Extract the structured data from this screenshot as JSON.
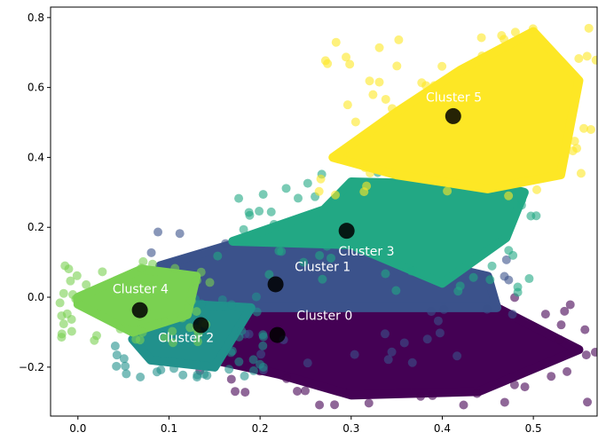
{
  "chart_data": {
    "type": "scatter",
    "title": "",
    "xlabel": "",
    "ylabel": "",
    "xlim": [
      -0.03,
      0.57
    ],
    "ylim": [
      -0.34,
      0.83
    ],
    "xticks": [
      0.0,
      0.1,
      0.2,
      0.3,
      0.4,
      0.5
    ],
    "xtick_labels": [
      "0.0",
      "0.1",
      "0.2",
      "0.3",
      "0.4",
      "0.5"
    ],
    "yticks": [
      -0.2,
      0.0,
      0.2,
      0.4,
      0.6,
      0.8
    ],
    "ytick_labels": [
      "−0.2",
      "0.0",
      "0.2",
      "0.4",
      "0.6",
      "0.8"
    ],
    "grid": false,
    "clusters": [
      {
        "name": "Cluster 0",
        "color": "#440154",
        "centroid": [
          0.219,
          -0.108
        ],
        "label_pos": [
          0.24,
          -0.065
        ],
        "region": [
          [
            0.22,
            -0.22
          ],
          [
            0.15,
            -0.18
          ],
          [
            0.19,
            -0.03
          ],
          [
            0.46,
            -0.03
          ],
          [
            0.55,
            -0.15
          ],
          [
            0.44,
            -0.27
          ],
          [
            0.3,
            -0.28
          ]
        ]
      },
      {
        "name": "Cluster 1",
        "color": "#3b528b",
        "centroid": [
          0.217,
          0.037
        ],
        "label_pos": [
          0.238,
          0.075
        ],
        "region": [
          [
            0.09,
            0.09
          ],
          [
            0.18,
            0.16
          ],
          [
            0.3,
            0.15
          ],
          [
            0.45,
            0.06
          ],
          [
            0.46,
            -0.03
          ],
          [
            0.19,
            -0.03
          ],
          [
            0.15,
            -0.18
          ],
          [
            0.12,
            -0.1
          ]
        ]
      },
      {
        "name": "Cluster 2",
        "color": "#21918c",
        "centroid": [
          0.135,
          -0.08
        ],
        "label_pos": [
          0.088,
          -0.128
        ],
        "region": [
          [
            0.06,
            -0.12
          ],
          [
            0.08,
            -0.18
          ],
          [
            0.15,
            -0.2
          ],
          [
            0.19,
            -0.03
          ],
          [
            0.12,
            -0.02
          ],
          [
            0.1,
            -0.08
          ]
        ]
      },
      {
        "name": "Cluster 3",
        "color": "#22a884",
        "centroid": [
          0.295,
          0.19
        ],
        "label_pos": [
          0.286,
          0.12
        ],
        "region": [
          [
            0.17,
            0.16
          ],
          [
            0.27,
            0.25
          ],
          [
            0.3,
            0.33
          ],
          [
            0.46,
            0.32
          ],
          [
            0.49,
            0.3
          ],
          [
            0.47,
            0.17
          ],
          [
            0.4,
            0.04
          ],
          [
            0.3,
            0.15
          ]
        ]
      },
      {
        "name": "Cluster 4",
        "color": "#7ad151",
        "centroid": [
          0.068,
          -0.037
        ],
        "label_pos": [
          0.038,
          0.012
        ],
        "region": [
          [
            0.0,
            0.0
          ],
          [
            0.07,
            0.08
          ],
          [
            0.13,
            0.06
          ],
          [
            0.12,
            -0.05
          ],
          [
            0.06,
            -0.1
          ],
          [
            0.0,
            -0.02
          ]
        ]
      },
      {
        "name": "Cluster 5",
        "color": "#fde725",
        "centroid": [
          0.412,
          0.518
        ],
        "label_pos": [
          0.382,
          0.56
        ],
        "region": [
          [
            0.28,
            0.4
          ],
          [
            0.35,
            0.53
          ],
          [
            0.42,
            0.65
          ],
          [
            0.5,
            0.76
          ],
          [
            0.55,
            0.62
          ],
          [
            0.53,
            0.35
          ],
          [
            0.45,
            0.31
          ],
          [
            0.35,
            0.35
          ]
        ]
      }
    ]
  }
}
